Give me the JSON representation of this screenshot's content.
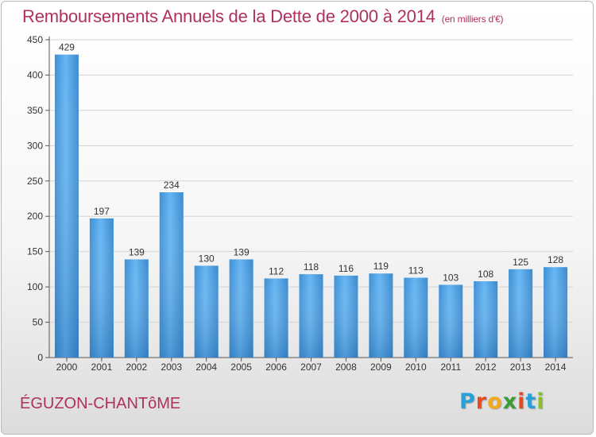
{
  "header": {
    "title": "Remboursements Annuels de la Dette de 2000 à 2014",
    "unit": "(en milliers d'€)"
  },
  "footer": {
    "commune": "ÉGUZON-CHANTôME",
    "logo_letters": [
      "P",
      "r",
      "o",
      "x",
      "i",
      "t",
      "i"
    ],
    "logo_colors": [
      "#2aa0d8",
      "#e84a1e",
      "#f4a81c",
      "#3a9d3a",
      "#e84a1e",
      "#2aa0d8",
      "#8bbf2a"
    ]
  },
  "chart_data": {
    "type": "bar",
    "categories": [
      "2000",
      "2001",
      "2002",
      "2003",
      "2004",
      "2005",
      "2006",
      "2007",
      "2008",
      "2009",
      "2010",
      "2011",
      "2012",
      "2013",
      "2014"
    ],
    "values": [
      429,
      197,
      139,
      234,
      130,
      139,
      112,
      118,
      116,
      119,
      113,
      103,
      108,
      125,
      128
    ],
    "yticks": [
      0,
      50,
      100,
      150,
      200,
      250,
      300,
      350,
      400,
      450
    ],
    "ylim": [
      0,
      450
    ],
    "grid": true,
    "bar_color": "#4a9fe0",
    "title": "Remboursements Annuels de la Dette de 2000 à 2014",
    "xlabel": "",
    "ylabel": ""
  }
}
